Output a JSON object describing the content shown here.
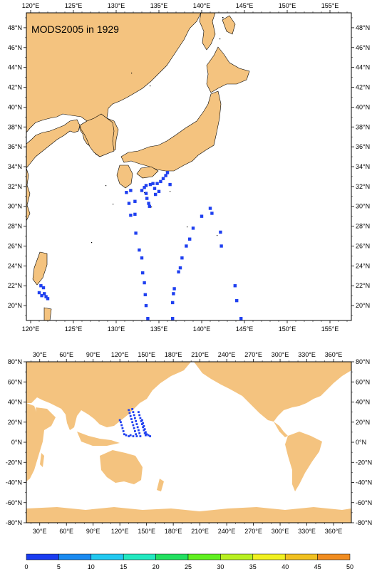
{
  "panel_top": {
    "title": "MODS2005 in 1929",
    "lon_ticks": [
      "120°E",
      "125°E",
      "130°E",
      "135°E",
      "140°E",
      "145°E",
      "150°E",
      "155°E"
    ],
    "lat_ticks": [
      "48°N",
      "46°N",
      "44°N",
      "42°N",
      "40°N",
      "38°N",
      "36°N",
      "34°N",
      "32°N",
      "30°N",
      "28°N",
      "26°N",
      "24°N",
      "22°N",
      "20°N"
    ],
    "lon_range": [
      119.5,
      157.5
    ],
    "lat_range": [
      18.5,
      49.5
    ],
    "observations": [
      [
        121.2,
        22.0
      ],
      [
        121.5,
        21.8
      ],
      [
        121.0,
        21.3
      ],
      [
        121.6,
        21.2
      ],
      [
        121.8,
        20.9
      ],
      [
        122.0,
        20.7
      ],
      [
        121.3,
        21.0
      ],
      [
        136.0,
        33.4
      ],
      [
        135.8,
        33.1
      ],
      [
        135.5,
        32.8
      ],
      [
        135.2,
        32.5
      ],
      [
        134.8,
        32.3
      ],
      [
        134.3,
        32.3
      ],
      [
        134.0,
        32.2
      ],
      [
        133.5,
        32.1
      ],
      [
        133.3,
        31.9
      ],
      [
        133.0,
        31.6
      ],
      [
        131.7,
        31.6
      ],
      [
        131.2,
        31.4
      ],
      [
        134.5,
        31.8
      ],
      [
        135.0,
        31.5
      ],
      [
        134.6,
        31.2
      ],
      [
        136.3,
        32.2
      ],
      [
        133.5,
        31.3
      ],
      [
        133.6,
        30.8
      ],
      [
        133.8,
        30.3
      ],
      [
        133.9,
        30.0
      ],
      [
        131.5,
        30.3
      ],
      [
        132.2,
        30.5
      ],
      [
        131.7,
        29.1
      ],
      [
        132.2,
        29.2
      ],
      [
        132.3,
        27.3
      ],
      [
        132.7,
        25.6
      ],
      [
        133.0,
        24.8
      ],
      [
        133.1,
        23.3
      ],
      [
        133.3,
        22.3
      ],
      [
        133.4,
        21.1
      ],
      [
        133.5,
        20.0
      ],
      [
        133.7,
        18.7
      ],
      [
        141.0,
        29.8
      ],
      [
        141.2,
        29.3
      ],
      [
        140.0,
        29.0
      ],
      [
        139.0,
        27.8
      ],
      [
        138.6,
        26.7
      ],
      [
        138.2,
        26.0
      ],
      [
        137.7,
        24.8
      ],
      [
        137.5,
        23.8
      ],
      [
        137.3,
        23.4
      ],
      [
        136.8,
        21.7
      ],
      [
        136.7,
        21.2
      ],
      [
        136.6,
        20.3
      ],
      [
        136.6,
        18.7
      ],
      [
        142.3,
        26.0
      ],
      [
        142.2,
        27.4
      ],
      [
        143.9,
        22.0
      ],
      [
        144.1,
        20.5
      ],
      [
        144.6,
        18.7
      ]
    ]
  },
  "panel_bottom": {
    "lon_ticks": [
      "30°E",
      "60°E",
      "90°E",
      "120°E",
      "150°E",
      "180°E",
      "210°E",
      "240°E",
      "270°E",
      "300°E",
      "330°E",
      "360°E"
    ],
    "lat_ticks": [
      "80°N",
      "60°N",
      "40°N",
      "20°N",
      "0°N",
      "-20°N",
      "-40°N",
      "-60°N",
      "-80°N"
    ],
    "lon_range": [
      15,
      380
    ],
    "lat_range": [
      -80,
      80
    ],
    "observations": [
      [
        120,
        22
      ],
      [
        121,
        20
      ],
      [
        122,
        17
      ],
      [
        123,
        14
      ],
      [
        124,
        11
      ],
      [
        125,
        8
      ],
      [
        127,
        7
      ],
      [
        130,
        6
      ],
      [
        130,
        32
      ],
      [
        131,
        29
      ],
      [
        132,
        26
      ],
      [
        133,
        23
      ],
      [
        134,
        20
      ],
      [
        135,
        17
      ],
      [
        136,
        14
      ],
      [
        137,
        11
      ],
      [
        138,
        8
      ],
      [
        139,
        6
      ],
      [
        134,
        33
      ],
      [
        135,
        30
      ],
      [
        136,
        27
      ],
      [
        137,
        24
      ],
      [
        138,
        21
      ],
      [
        139,
        18
      ],
      [
        140,
        15
      ],
      [
        141,
        12
      ],
      [
        142,
        9
      ],
      [
        143,
        6
      ],
      [
        141,
        30
      ],
      [
        142,
        27
      ],
      [
        143,
        24
      ],
      [
        144,
        21
      ],
      [
        145,
        18
      ],
      [
        146,
        15
      ],
      [
        147,
        12
      ],
      [
        148,
        9
      ],
      [
        149,
        7
      ],
      [
        145,
        22
      ],
      [
        146,
        19
      ],
      [
        147,
        16
      ],
      [
        148,
        13
      ],
      [
        149,
        10
      ],
      [
        150,
        8
      ],
      [
        152,
        7
      ],
      [
        154,
        6
      ],
      [
        132,
        7
      ],
      [
        135,
        6
      ]
    ]
  },
  "colorbar": {
    "labels": [
      "0",
      "5",
      "10",
      "15",
      "20",
      "25",
      "30",
      "35",
      "40",
      "45",
      "50"
    ],
    "colors": [
      "#1a3cf0",
      "#1a8af0",
      "#22c8f0",
      "#22e8c0",
      "#22e060",
      "#60f020",
      "#b8f020",
      "#f0f020",
      "#f0c020",
      "#f08c20",
      "#f04020"
    ]
  },
  "colors": {
    "land": "#f4c37f",
    "ocean": "#ffffff",
    "obs": "#1f40f0",
    "coast": "#000000"
  }
}
